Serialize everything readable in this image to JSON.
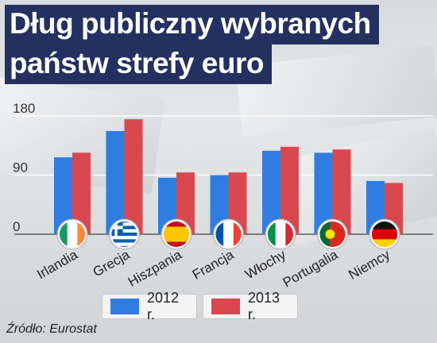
{
  "title": {
    "line1": "Dług publiczny wybranych",
    "line2": "państw strefy euro"
  },
  "source": "Źródło: Eurostat",
  "colors": {
    "s2012": "#2f7de0",
    "s2013": "#d9474f"
  },
  "legend": [
    {
      "label": "2012 r.",
      "color": "#2f7de0"
    },
    {
      "label": "2013 r.",
      "color": "#d9474f"
    }
  ],
  "chart_data": {
    "type": "bar",
    "title": "Dług publiczny wybranych państw strefy euro",
    "categories": [
      "Irlandia",
      "Grecja",
      "Hiszpania",
      "Francja",
      "Włochy",
      "Portugalia",
      "Niemcy"
    ],
    "series": [
      {
        "name": "2012 r.",
        "values": [
          117,
          157,
          86,
          90,
          127,
          124,
          81
        ]
      },
      {
        "name": "2013 r.",
        "values": [
          124,
          175,
          94,
          94,
          133,
          129,
          78
        ]
      }
    ],
    "yticks": [
      0,
      90,
      180
    ],
    "ylim": [
      0,
      180
    ],
    "flags": [
      "flag-ireland-icon",
      "flag-greece-icon",
      "flag-spain-icon",
      "flag-france-icon",
      "flag-italy-icon",
      "flag-portugal-icon",
      "flag-germany-icon"
    ],
    "legend_position": "bottom",
    "grid": true
  }
}
